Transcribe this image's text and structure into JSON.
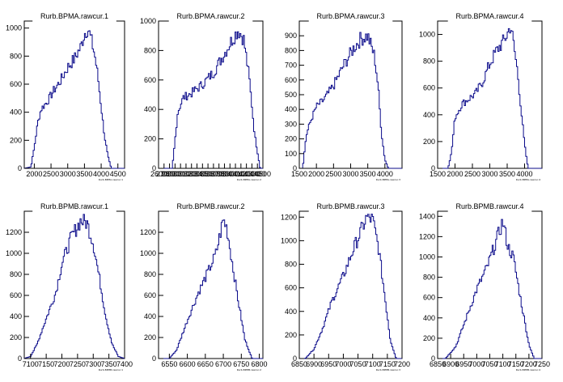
{
  "colors": {
    "histogram": "#0a0a8a",
    "axis": "#000000",
    "background": "#ffffff"
  },
  "chart_data": [
    {
      "type": "bar",
      "style": "step-histogram",
      "title": "Rurb.BPMA.rawcur.1",
      "xlabel": "Rurb.BPMA.rawcur.1",
      "xlim": [
        1700,
        4700
      ],
      "ylim": [
        0,
        1050
      ],
      "xticks": [
        2000,
        2500,
        3000,
        3500,
        4000,
        4500
      ],
      "yticks": [
        0,
        200,
        400,
        600,
        800,
        1000
      ],
      "profile_x": [
        1700,
        1900,
        2000,
        2100,
        2200,
        2400,
        2600,
        2800,
        3000,
        3200,
        3400,
        3500,
        3600,
        3700,
        3800,
        3900,
        4000,
        4100,
        4200,
        4300,
        4700
      ],
      "profile_y": [
        0,
        10,
        150,
        320,
        420,
        480,
        560,
        630,
        720,
        780,
        870,
        960,
        1000,
        920,
        820,
        660,
        440,
        230,
        90,
        0,
        0
      ]
    },
    {
      "type": "bar",
      "style": "step-histogram",
      "title": "Rurb.BPMA.rawcur.2",
      "xlabel": "Rurb.BPMA.rawcur.2",
      "xlim": [
        2600,
        4500
      ],
      "ylim": [
        0,
        1000
      ],
      "xticks": [
        2600,
        2700,
        2800,
        2900,
        3000,
        3100,
        3200,
        3300,
        3400,
        3500,
        3600,
        3700,
        3800,
        3900,
        4000,
        4100,
        4200,
        4300,
        4400,
        4500
      ],
      "yticks": [
        0,
        200,
        400,
        600,
        800,
        1000
      ],
      "profile_x": [
        2600,
        2850,
        2950,
        3050,
        3200,
        3400,
        3600,
        3800,
        3950,
        4050,
        4150,
        4250,
        4350,
        4450,
        4500
      ],
      "profile_y": [
        0,
        0,
        380,
        480,
        510,
        570,
        650,
        780,
        880,
        940,
        880,
        620,
        230,
        0,
        0
      ]
    },
    {
      "type": "bar",
      "style": "step-histogram",
      "title": "Rurb.BPMA.rawcur.3",
      "xlabel": "Rurb.BPMA.rawcur.3",
      "xlim": [
        1500,
        4500
      ],
      "ylim": [
        0,
        1000
      ],
      "xticks": [
        1500,
        2000,
        2500,
        3000,
        3500,
        4000
      ],
      "yticks": [
        0,
        100,
        200,
        300,
        400,
        500,
        600,
        700,
        800,
        900
      ],
      "profile_x": [
        1500,
        1600,
        1700,
        1800,
        1900,
        2000,
        2200,
        2500,
        2800,
        3100,
        3300,
        3500,
        3700,
        3800,
        3900,
        4000,
        4100,
        4500
      ],
      "profile_y": [
        0,
        0,
        220,
        300,
        360,
        420,
        460,
        560,
        700,
        820,
        880,
        900,
        760,
        560,
        240,
        60,
        0,
        0
      ]
    },
    {
      "type": "bar",
      "style": "step-histogram",
      "title": "Rurb.BPMA.rawcur.4",
      "xlabel": "Rurb.BPMA.rawcur.4",
      "xlim": [
        1500,
        4500
      ],
      "ylim": [
        0,
        1100
      ],
      "xticks": [
        1500,
        2000,
        2500,
        3000,
        3500,
        4000
      ],
      "yticks": [
        0,
        200,
        400,
        600,
        800,
        1000
      ],
      "profile_x": [
        1500,
        1800,
        1900,
        2000,
        2200,
        2400,
        2600,
        2800,
        3000,
        3200,
        3400,
        3500,
        3600,
        3700,
        3800,
        3900,
        4000,
        4100,
        4500
      ],
      "profile_y": [
        0,
        0,
        120,
        380,
        480,
        520,
        560,
        650,
        780,
        880,
        950,
        1000,
        1070,
        900,
        720,
        440,
        180,
        0,
        0
      ]
    },
    {
      "type": "bar",
      "style": "step-histogram",
      "title": "Rurb.BPMB.rawcur.1",
      "xlabel": "Rurb.BPMB.rawcur.1",
      "xlim": [
        7080,
        7400
      ],
      "ylim": [
        0,
        1400
      ],
      "xticks": [
        7100,
        7150,
        7200,
        7250,
        7300,
        7350,
        7400
      ],
      "yticks": [
        0,
        200,
        400,
        600,
        800,
        1000,
        1200
      ],
      "profile_x": [
        7080,
        7100,
        7120,
        7150,
        7180,
        7200,
        7230,
        7260,
        7280,
        7300,
        7320,
        7340,
        7360,
        7380,
        7400
      ],
      "profile_y": [
        0,
        20,
        130,
        380,
        620,
        900,
        1150,
        1310,
        1290,
        1100,
        760,
        400,
        140,
        20,
        0
      ]
    },
    {
      "type": "bar",
      "style": "step-histogram",
      "title": "Rurb.BPMB.rawcur.2",
      "xlabel": "Rurb.BPMB.rawcur.2",
      "xlim": [
        6520,
        6810
      ],
      "ylim": [
        0,
        1400
      ],
      "xticks": [
        6550,
        6600,
        6650,
        6700,
        6750,
        6800
      ],
      "yticks": [
        0,
        200,
        400,
        600,
        800,
        1000,
        1200
      ],
      "profile_x": [
        6520,
        6550,
        6570,
        6600,
        6630,
        6660,
        6680,
        6700,
        6710,
        6720,
        6740,
        6760,
        6780,
        6810
      ],
      "profile_y": [
        0,
        0,
        80,
        360,
        620,
        840,
        1000,
        1320,
        1240,
        1020,
        580,
        180,
        0,
        0
      ]
    },
    {
      "type": "bar",
      "style": "step-histogram",
      "title": "Rurb.BPMB.rawcur.3",
      "xlabel": "Rurb.BPMB.rawcur.3",
      "xlim": [
        6850,
        7200
      ],
      "ylim": [
        0,
        1250
      ],
      "xticks": [
        6850,
        6900,
        6950,
        7000,
        7050,
        7100,
        7150,
        7200
      ],
      "yticks": [
        0,
        200,
        400,
        600,
        800,
        1000,
        1200
      ],
      "profile_x": [
        6850,
        6870,
        6900,
        6930,
        6960,
        7000,
        7030,
        7060,
        7080,
        7100,
        7120,
        7140,
        7160,
        7180,
        7200
      ],
      "profile_y": [
        0,
        0,
        80,
        260,
        480,
        700,
        900,
        1080,
        1200,
        1180,
        940,
        560,
        160,
        0,
        0
      ]
    },
    {
      "type": "bar",
      "style": "step-histogram",
      "title": "Rurb.BPMB.rawcur.4",
      "xlabel": "Rurb.BPMB.rawcur.4",
      "xlim": [
        6850,
        7250
      ],
      "ylim": [
        0,
        1450
      ],
      "xticks": [
        6850,
        6900,
        6950,
        7000,
        7050,
        7100,
        7150,
        7200,
        7250
      ],
      "yticks": [
        0,
        200,
        400,
        600,
        800,
        1000,
        1200,
        1400
      ],
      "profile_x": [
        6850,
        6880,
        6920,
        6960,
        7000,
        7040,
        7070,
        7100,
        7120,
        7140,
        7170,
        7200,
        7220,
        7250
      ],
      "profile_y": [
        0,
        0,
        120,
        400,
        680,
        900,
        1120,
        1350,
        1100,
        1000,
        560,
        140,
        0,
        0
      ]
    }
  ]
}
